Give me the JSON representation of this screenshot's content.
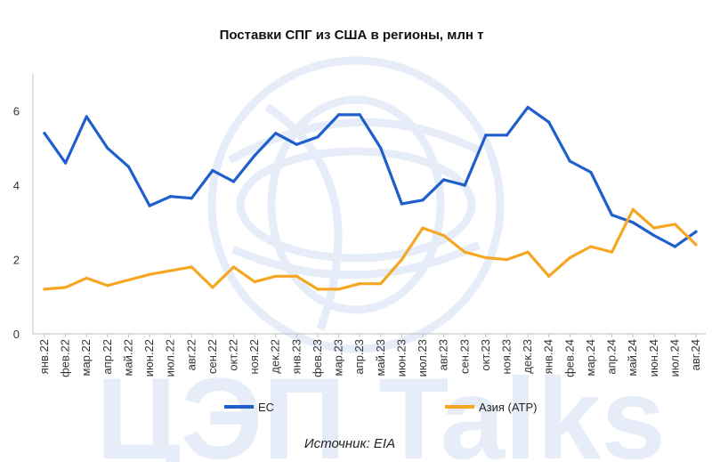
{
  "watermark": {
    "text": "ЦЭП Talks",
    "logo": "globe-logo",
    "color": "#e6edf8"
  },
  "source_note": "Источник: EIA",
  "colors": {
    "ec": "#1f5fcc",
    "asia": "#f5a623",
    "axis": "#bfbfbf"
  },
  "chart_data": {
    "type": "line",
    "title": "Поставки СПГ из США в регионы, млн т",
    "xlabel": "",
    "ylabel": "",
    "ylim": [
      0,
      7
    ],
    "yticks": [
      0,
      2,
      4,
      6
    ],
    "grid": false,
    "legend": "bottom",
    "categories": [
      "янв.22",
      "фев.22",
      "мар.22",
      "апр.22",
      "май.22",
      "июн.22",
      "июл.22",
      "авг.22",
      "сен.22",
      "окт.22",
      "ноя.22",
      "дек.22",
      "янв.23",
      "фев.23",
      "мар.23",
      "апр.23",
      "май.23",
      "июн.23",
      "июл.23",
      "авг.23",
      "сен.23",
      "окт.23",
      "ноя.23",
      "дек.23",
      "янв.24",
      "фев.24",
      "мар.24",
      "апр.24",
      "май.24",
      "июн.24",
      "июл.24",
      "авг.24"
    ],
    "series": [
      {
        "name": "ЕС",
        "color": "#1f5fcc",
        "values": [
          5.4,
          4.6,
          5.85,
          5.0,
          4.5,
          3.45,
          3.7,
          3.65,
          4.4,
          4.1,
          4.8,
          5.4,
          5.1,
          5.3,
          5.9,
          5.9,
          5.0,
          3.5,
          3.6,
          4.15,
          4.0,
          5.35,
          5.35,
          6.1,
          5.7,
          4.65,
          4.35,
          3.2,
          3.0,
          2.65,
          2.35,
          2.75
        ]
      },
      {
        "name": "Азия (АТР)",
        "color": "#f5a623",
        "values": [
          1.2,
          1.25,
          1.5,
          1.3,
          1.45,
          1.6,
          1.7,
          1.8,
          1.25,
          1.8,
          1.4,
          1.55,
          1.55,
          1.2,
          1.2,
          1.35,
          1.35,
          2.0,
          2.85,
          2.65,
          2.2,
          2.05,
          2.0,
          2.2,
          1.55,
          2.05,
          2.35,
          2.2,
          3.35,
          2.85,
          2.95,
          2.4
        ]
      }
    ]
  }
}
